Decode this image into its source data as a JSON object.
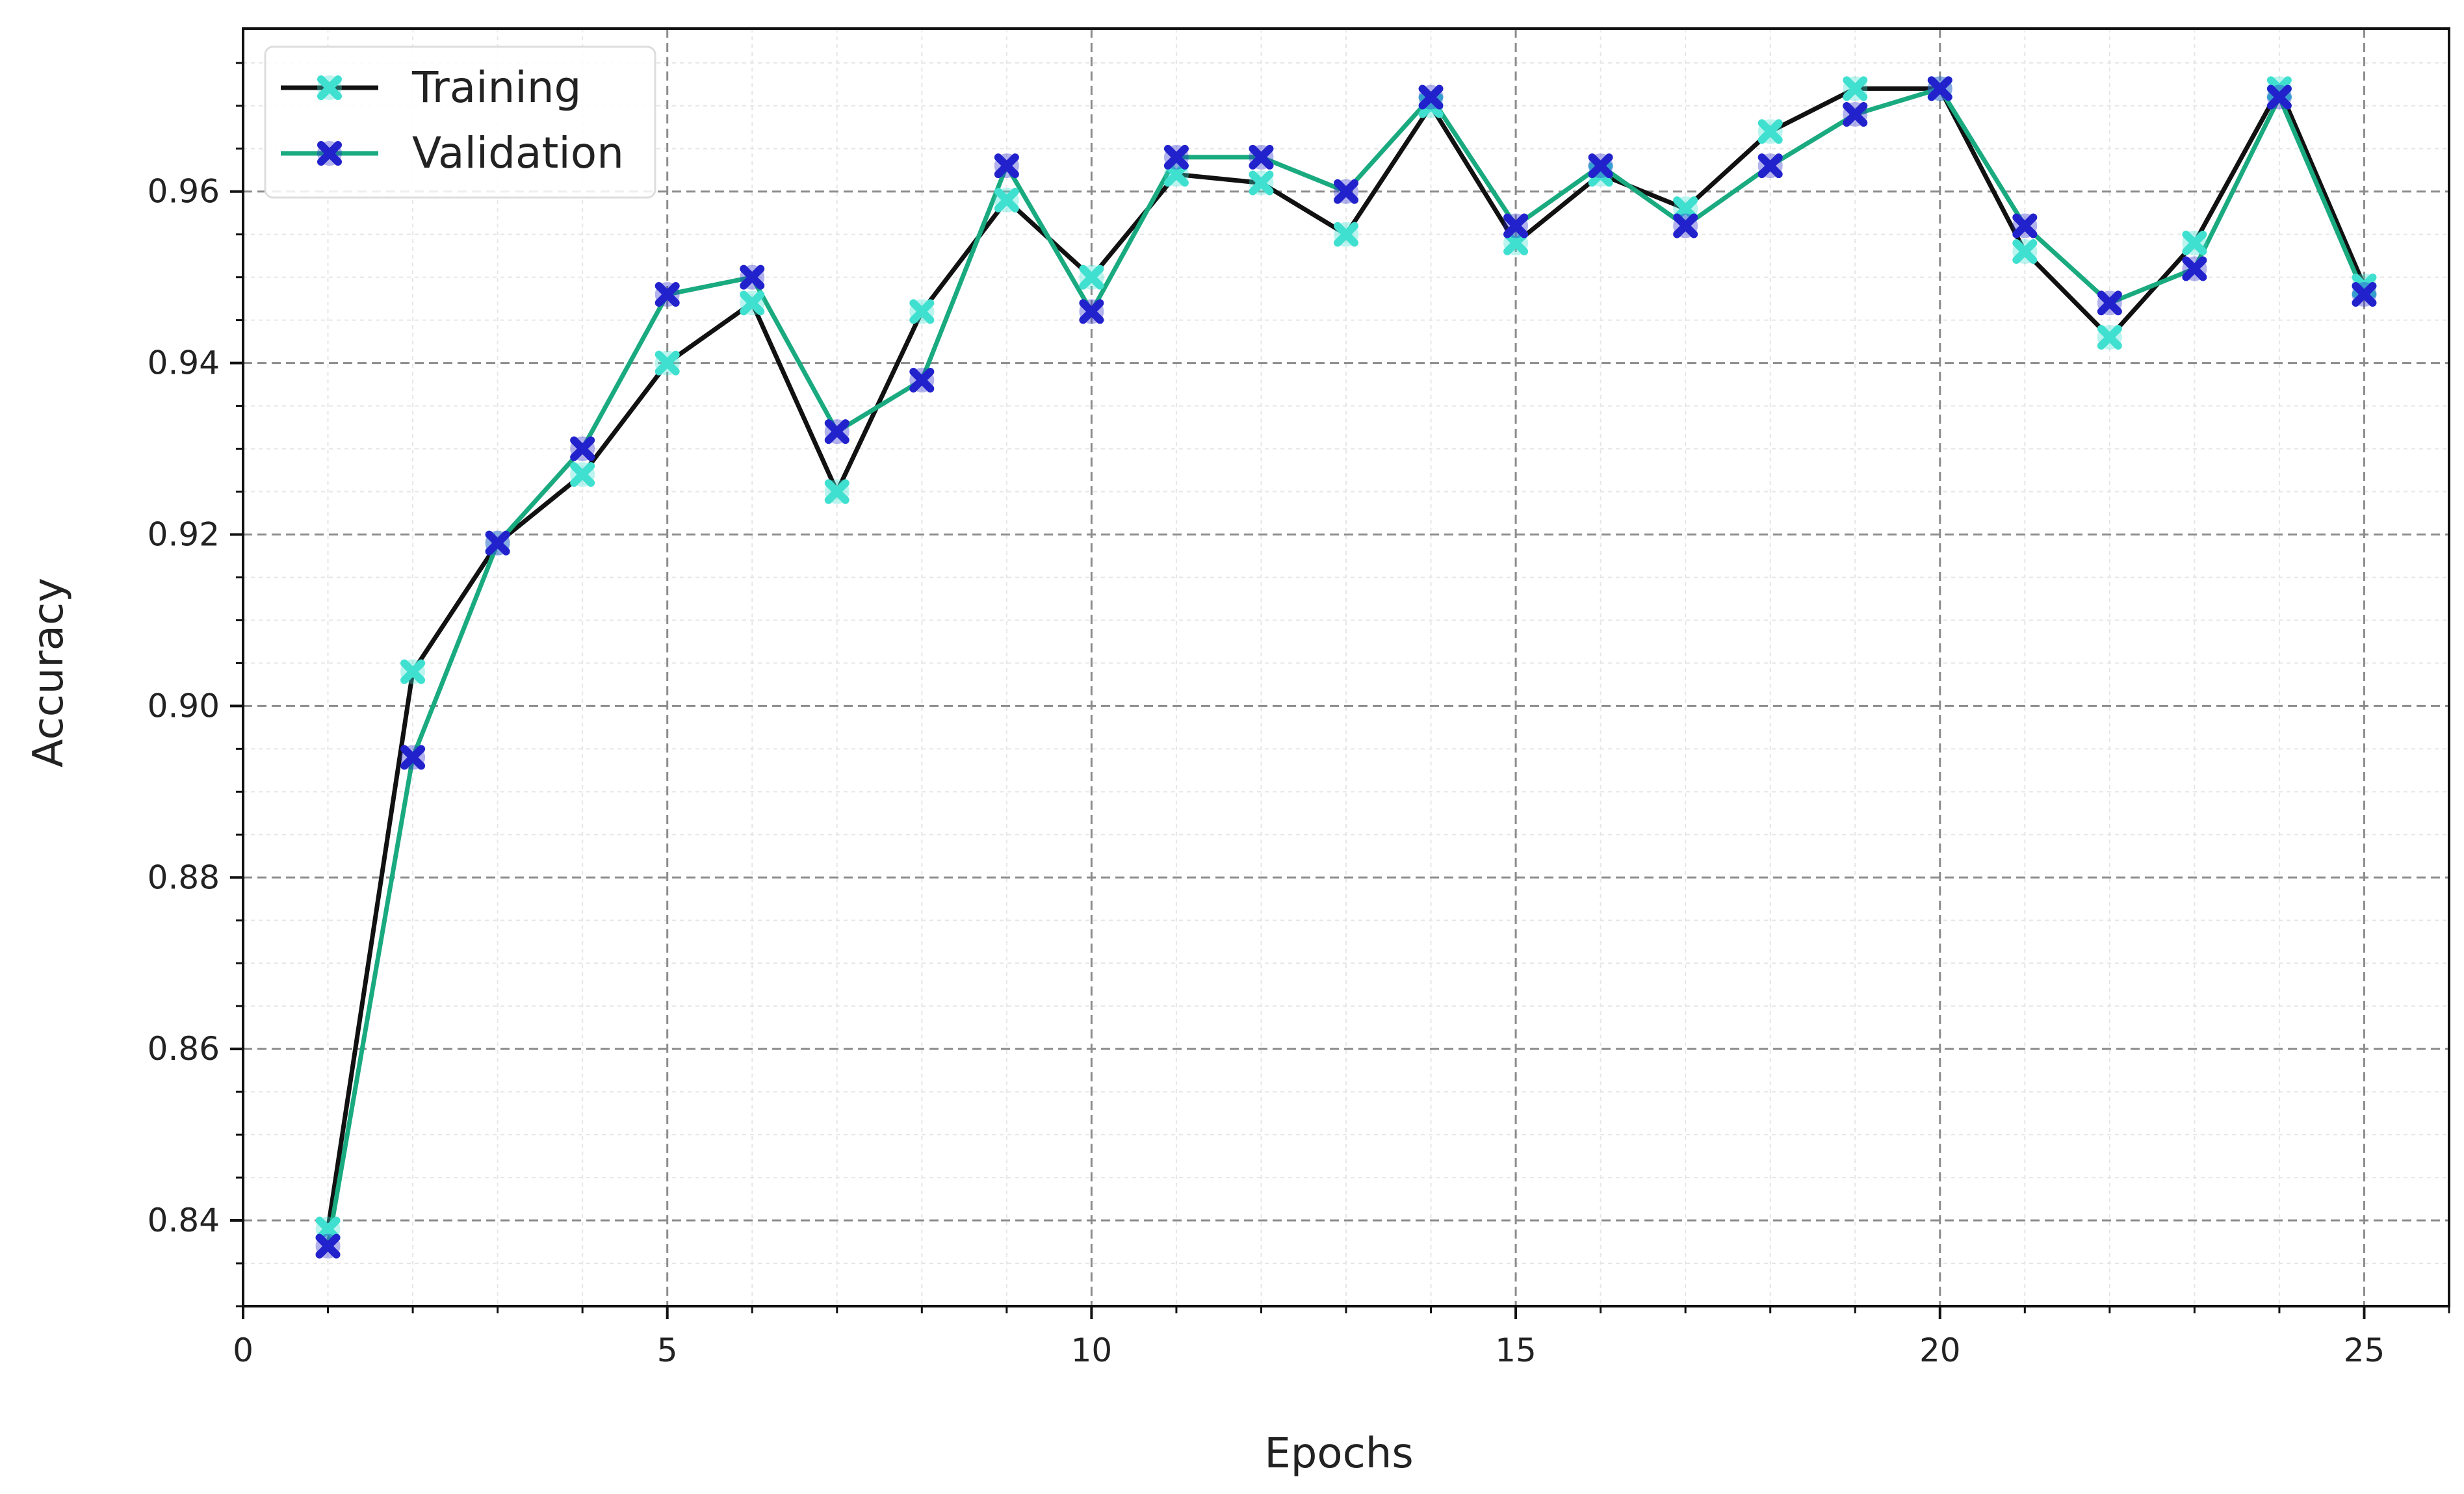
{
  "chart_data": {
    "type": "line",
    "title": "",
    "xlabel": "Epochs",
    "ylabel": "Accuracy",
    "xlim": [
      0,
      26
    ],
    "ylim": [
      0.83,
      0.979
    ],
    "xticks": [
      0,
      5,
      10,
      15,
      20,
      25
    ],
    "yticks": [
      0.84,
      0.86,
      0.88,
      0.9,
      0.92,
      0.94,
      0.96
    ],
    "ytick_labels": [
      "0.84",
      "0.86",
      "0.88",
      "0.90",
      "0.92",
      "0.94",
      "0.96"
    ],
    "grid": true,
    "minor_grid": true,
    "legend_position": "top-left",
    "x": [
      1,
      2,
      3,
      4,
      5,
      6,
      7,
      8,
      9,
      10,
      11,
      12,
      13,
      14,
      15,
      16,
      17,
      18,
      19,
      20,
      21,
      22,
      23,
      24,
      25
    ],
    "series": [
      {
        "name": "Training",
        "line_color": "#111111",
        "marker_color": "#40e0d0",
        "values": [
          0.839,
          0.904,
          0.919,
          0.927,
          0.94,
          0.947,
          0.925,
          0.946,
          0.959,
          0.95,
          0.962,
          0.961,
          0.955,
          0.97,
          0.954,
          0.962,
          0.958,
          0.967,
          0.972,
          0.972,
          0.953,
          0.943,
          0.954,
          0.972,
          0.949
        ]
      },
      {
        "name": "Validation",
        "line_color": "#1aaa80",
        "marker_color": "#2222cc",
        "values": [
          0.837,
          0.894,
          0.919,
          0.93,
          0.948,
          0.95,
          0.932,
          0.938,
          0.963,
          0.946,
          0.964,
          0.964,
          0.96,
          0.971,
          0.956,
          0.963,
          0.956,
          0.963,
          0.969,
          0.972,
          0.956,
          0.947,
          0.951,
          0.971,
          0.948
        ]
      }
    ]
  }
}
